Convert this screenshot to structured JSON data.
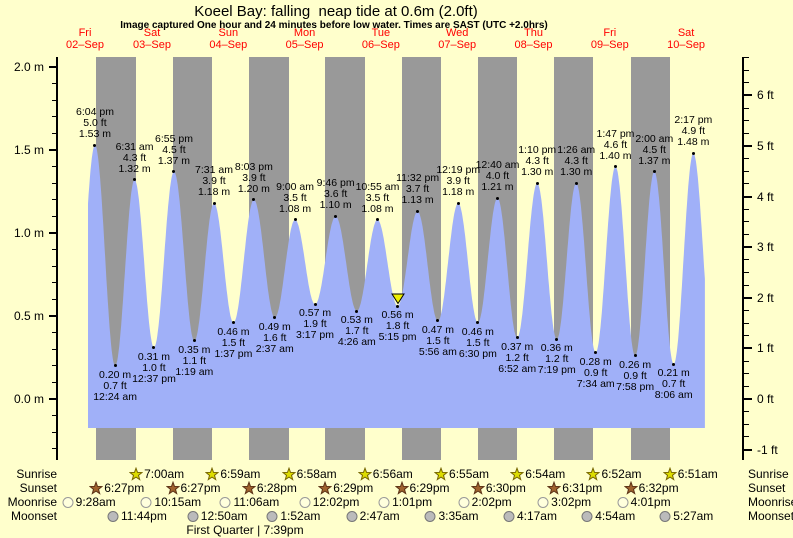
{
  "chart_data": {
    "type": "area",
    "title": "Koeel Bay: falling  neap tide at 0.6m (2.0ft)",
    "subtitle": "Image captured One hour and 24 minutes before low water. Times are SAST (UTC +2.0hrs)",
    "days": [
      {
        "weekday": "Fri",
        "date": "02–Sep"
      },
      {
        "weekday": "Sat",
        "date": "03–Sep"
      },
      {
        "weekday": "Sun",
        "date": "04–Sep"
      },
      {
        "weekday": "Mon",
        "date": "05–Sep"
      },
      {
        "weekday": "Tue",
        "date": "06–Sep"
      },
      {
        "weekday": "Wed",
        "date": "07–Sep"
      },
      {
        "weekday": "Thu",
        "date": "08–Sep"
      },
      {
        "weekday": "Fri",
        "date": "09–Sep"
      },
      {
        "weekday": "Sat",
        "date": "10–Sep"
      }
    ],
    "y_axis_left": {
      "unit": "m",
      "major_ticks": [
        "0.0 m",
        "0.5 m",
        "1.0 m",
        "1.5 m",
        "2.0 m"
      ],
      "range_m": [
        -0.37,
        2.06
      ]
    },
    "y_axis_right": {
      "unit": "ft",
      "major_ticks": [
        "-1 ft",
        "0 ft",
        "1 ft",
        "2 ft",
        "3 ft",
        "4 ft",
        "5 ft",
        "6 ft"
      ]
    },
    "tide_events": [
      {
        "kind": "high",
        "day": 0,
        "time": "6:04 pm",
        "ft": "5.0 ft",
        "m": "1.53 m",
        "value_m": 1.53
      },
      {
        "kind": "low",
        "day": 1,
        "time": "12:24 am",
        "ft": "0.7 ft",
        "m": "0.20 m",
        "value_m": 0.2
      },
      {
        "kind": "high",
        "day": 1,
        "time": "6:31 am",
        "ft": "4.3 ft",
        "m": "1.32 m",
        "value_m": 1.32
      },
      {
        "kind": "low",
        "day": 1,
        "time": "12:37 pm",
        "ft": "1.0 ft",
        "m": "0.31 m",
        "value_m": 0.31
      },
      {
        "kind": "high",
        "day": 1,
        "time": "6:55 pm",
        "ft": "4.5 ft",
        "m": "1.37 m",
        "value_m": 1.37
      },
      {
        "kind": "low",
        "day": 2,
        "time": "1:19 am",
        "ft": "1.1 ft",
        "m": "0.35 m",
        "value_m": 0.35
      },
      {
        "kind": "high",
        "day": 2,
        "time": "7:31 am",
        "ft": "3.9 ft",
        "m": "1.18 m",
        "value_m": 1.18
      },
      {
        "kind": "low",
        "day": 2,
        "time": "1:37 pm",
        "ft": "1.5 ft",
        "m": "0.46 m",
        "value_m": 0.46
      },
      {
        "kind": "high",
        "day": 2,
        "time": "8:03 pm",
        "ft": "3.9 ft",
        "m": "1.20 m",
        "value_m": 1.2
      },
      {
        "kind": "low",
        "day": 3,
        "time": "2:37 am",
        "ft": "1.6 ft",
        "m": "0.49 m",
        "value_m": 0.49
      },
      {
        "kind": "high",
        "day": 3,
        "time": "9:00 am",
        "ft": "3.5 ft",
        "m": "1.08 m",
        "value_m": 1.08
      },
      {
        "kind": "low",
        "day": 3,
        "time": "3:17 pm",
        "ft": "1.9 ft",
        "m": "0.57 m",
        "value_m": 0.57
      },
      {
        "kind": "high",
        "day": 3,
        "time": "9:46 pm",
        "ft": "3.6 ft",
        "m": "1.10 m",
        "value_m": 1.1
      },
      {
        "kind": "low",
        "day": 4,
        "time": "4:26 am",
        "ft": "1.7 ft",
        "m": "0.53 m",
        "value_m": 0.53
      },
      {
        "kind": "high",
        "day": 4,
        "time": "10:55 am",
        "ft": "3.5 ft",
        "m": "1.08 m",
        "value_m": 1.08
      },
      {
        "kind": "low",
        "day": 4,
        "time": "5:15 pm",
        "ft": "1.8 ft",
        "m": "0.56 m",
        "value_m": 0.56,
        "current_marker": true
      },
      {
        "kind": "high",
        "day": 4,
        "time": "11:32 pm",
        "ft": "3.7 ft",
        "m": "1.13 m",
        "value_m": 1.13
      },
      {
        "kind": "low",
        "day": 5,
        "time": "5:56 am",
        "ft": "1.5 ft",
        "m": "0.47 m",
        "value_m": 0.47
      },
      {
        "kind": "high",
        "day": 5,
        "time": "12:19 pm",
        "ft": "3.9 ft",
        "m": "1.18 m",
        "value_m": 1.18
      },
      {
        "kind": "low",
        "day": 5,
        "time": "6:30 pm",
        "ft": "1.5 ft",
        "m": "0.46 m",
        "value_m": 0.46
      },
      {
        "kind": "high",
        "day": 6,
        "time": "12:40 am",
        "ft": "4.0 ft",
        "m": "1.21 m",
        "value_m": 1.21
      },
      {
        "kind": "low",
        "day": 6,
        "time": "6:52 am",
        "ft": "1.2 ft",
        "m": "0.37 m",
        "value_m": 0.37
      },
      {
        "kind": "high",
        "day": 6,
        "time": "1:10 pm",
        "ft": "4.3 ft",
        "m": "1.30 m",
        "value_m": 1.3
      },
      {
        "kind": "low",
        "day": 6,
        "time": "7:19 pm",
        "ft": "1.2 ft",
        "m": "0.36 m",
        "value_m": 0.36
      },
      {
        "kind": "high",
        "day": 7,
        "time": "1:26 am",
        "ft": "4.3 ft",
        "m": "1.30 m",
        "value_m": 1.3
      },
      {
        "kind": "low",
        "day": 7,
        "time": "7:34 am",
        "ft": "0.9 ft",
        "m": "0.28 m",
        "value_m": 0.28
      },
      {
        "kind": "high",
        "day": 7,
        "time": "1:47 pm",
        "ft": "4.6 ft",
        "m": "1.40 m",
        "value_m": 1.4
      },
      {
        "kind": "low",
        "day": 7,
        "time": "7:58 pm",
        "ft": "0.9 ft",
        "m": "0.26 m",
        "value_m": 0.26
      },
      {
        "kind": "high",
        "day": 8,
        "time": "2:00 am",
        "ft": "4.5 ft",
        "m": "1.37 m",
        "value_m": 1.37
      },
      {
        "kind": "low",
        "day": 8,
        "time": "8:06 am",
        "ft": "0.7 ft",
        "m": "0.21 m",
        "value_m": 0.21
      },
      {
        "kind": "high",
        "day": 8,
        "time": "2:17 pm",
        "ft": "4.9 ft",
        "m": "1.48 m",
        "value_m": 1.48
      }
    ],
    "current_time_marker": {
      "attached_to_event": "5:15 pm low on Tue 06–Sep",
      "shape": "yellow-triangle-down"
    },
    "sun_moon_rows": [
      {
        "id": "sunrise",
        "label": "Sunrise",
        "entries": [
          {
            "day": 1,
            "time": "7:00am"
          },
          {
            "day": 2,
            "time": "6:59am"
          },
          {
            "day": 3,
            "time": "6:58am"
          },
          {
            "day": 4,
            "time": "6:56am"
          },
          {
            "day": 5,
            "time": "6:55am"
          },
          {
            "day": 6,
            "time": "6:54am"
          },
          {
            "day": 7,
            "time": "6:52am"
          },
          {
            "day": 8,
            "time": "6:51am"
          }
        ]
      },
      {
        "id": "sunset",
        "label": "Sunset",
        "entries": [
          {
            "day": 0,
            "time": "6:27pm"
          },
          {
            "day": 1,
            "time": "6:27pm"
          },
          {
            "day": 2,
            "time": "6:28pm"
          },
          {
            "day": 3,
            "time": "6:29pm"
          },
          {
            "day": 4,
            "time": "6:29pm"
          },
          {
            "day": 5,
            "time": "6:30pm"
          },
          {
            "day": 6,
            "time": "6:31pm"
          },
          {
            "day": 7,
            "time": "6:32pm"
          }
        ]
      },
      {
        "id": "moonrise",
        "label": "Moonrise",
        "entries": [
          {
            "day": 0,
            "time": "9:28am"
          },
          {
            "day": 1,
            "time": "10:15am"
          },
          {
            "day": 2,
            "time": "11:06am"
          },
          {
            "day": 3,
            "time": "12:02pm"
          },
          {
            "day": 4,
            "time": "1:01pm"
          },
          {
            "day": 5,
            "time": "2:02pm"
          },
          {
            "day": 6,
            "time": "3:02pm"
          },
          {
            "day": 7,
            "time": "4:01pm"
          }
        ]
      },
      {
        "id": "moonset",
        "label": "Moonset",
        "entries": [
          {
            "day": 0,
            "time": "11:44pm"
          },
          {
            "day": 2,
            "time": "12:50am"
          },
          {
            "day": 3,
            "time": "1:52am"
          },
          {
            "day": 4,
            "time": "2:47am"
          },
          {
            "day": 5,
            "time": "3:35am"
          },
          {
            "day": 6,
            "time": "4:17am"
          },
          {
            "day": 7,
            "time": "4:54am"
          },
          {
            "day": 8,
            "time": "5:27am"
          }
        ]
      }
    ],
    "moon_phase": "First Quarter | 7:39pm"
  },
  "colors": {
    "background": "#FFFFCC",
    "night_band": "#999999",
    "tide_fill": "#A0B0F8",
    "day_label": "#FF0000",
    "sunrise_star_fill": "#DDDD00",
    "sunrise_star_stroke": "#776600",
    "sunset_star_fill": "#A0622D",
    "sunset_star_stroke": "#5C3317",
    "moonrise_circle_fill": "#FFFFDD",
    "moonrise_circle_stroke": "#999999",
    "moonset_circle_fill": "#BBBBBB",
    "moonset_circle_stroke": "#777777",
    "marker_fill": "#EEEE00",
    "marker_stroke": "#000000"
  }
}
